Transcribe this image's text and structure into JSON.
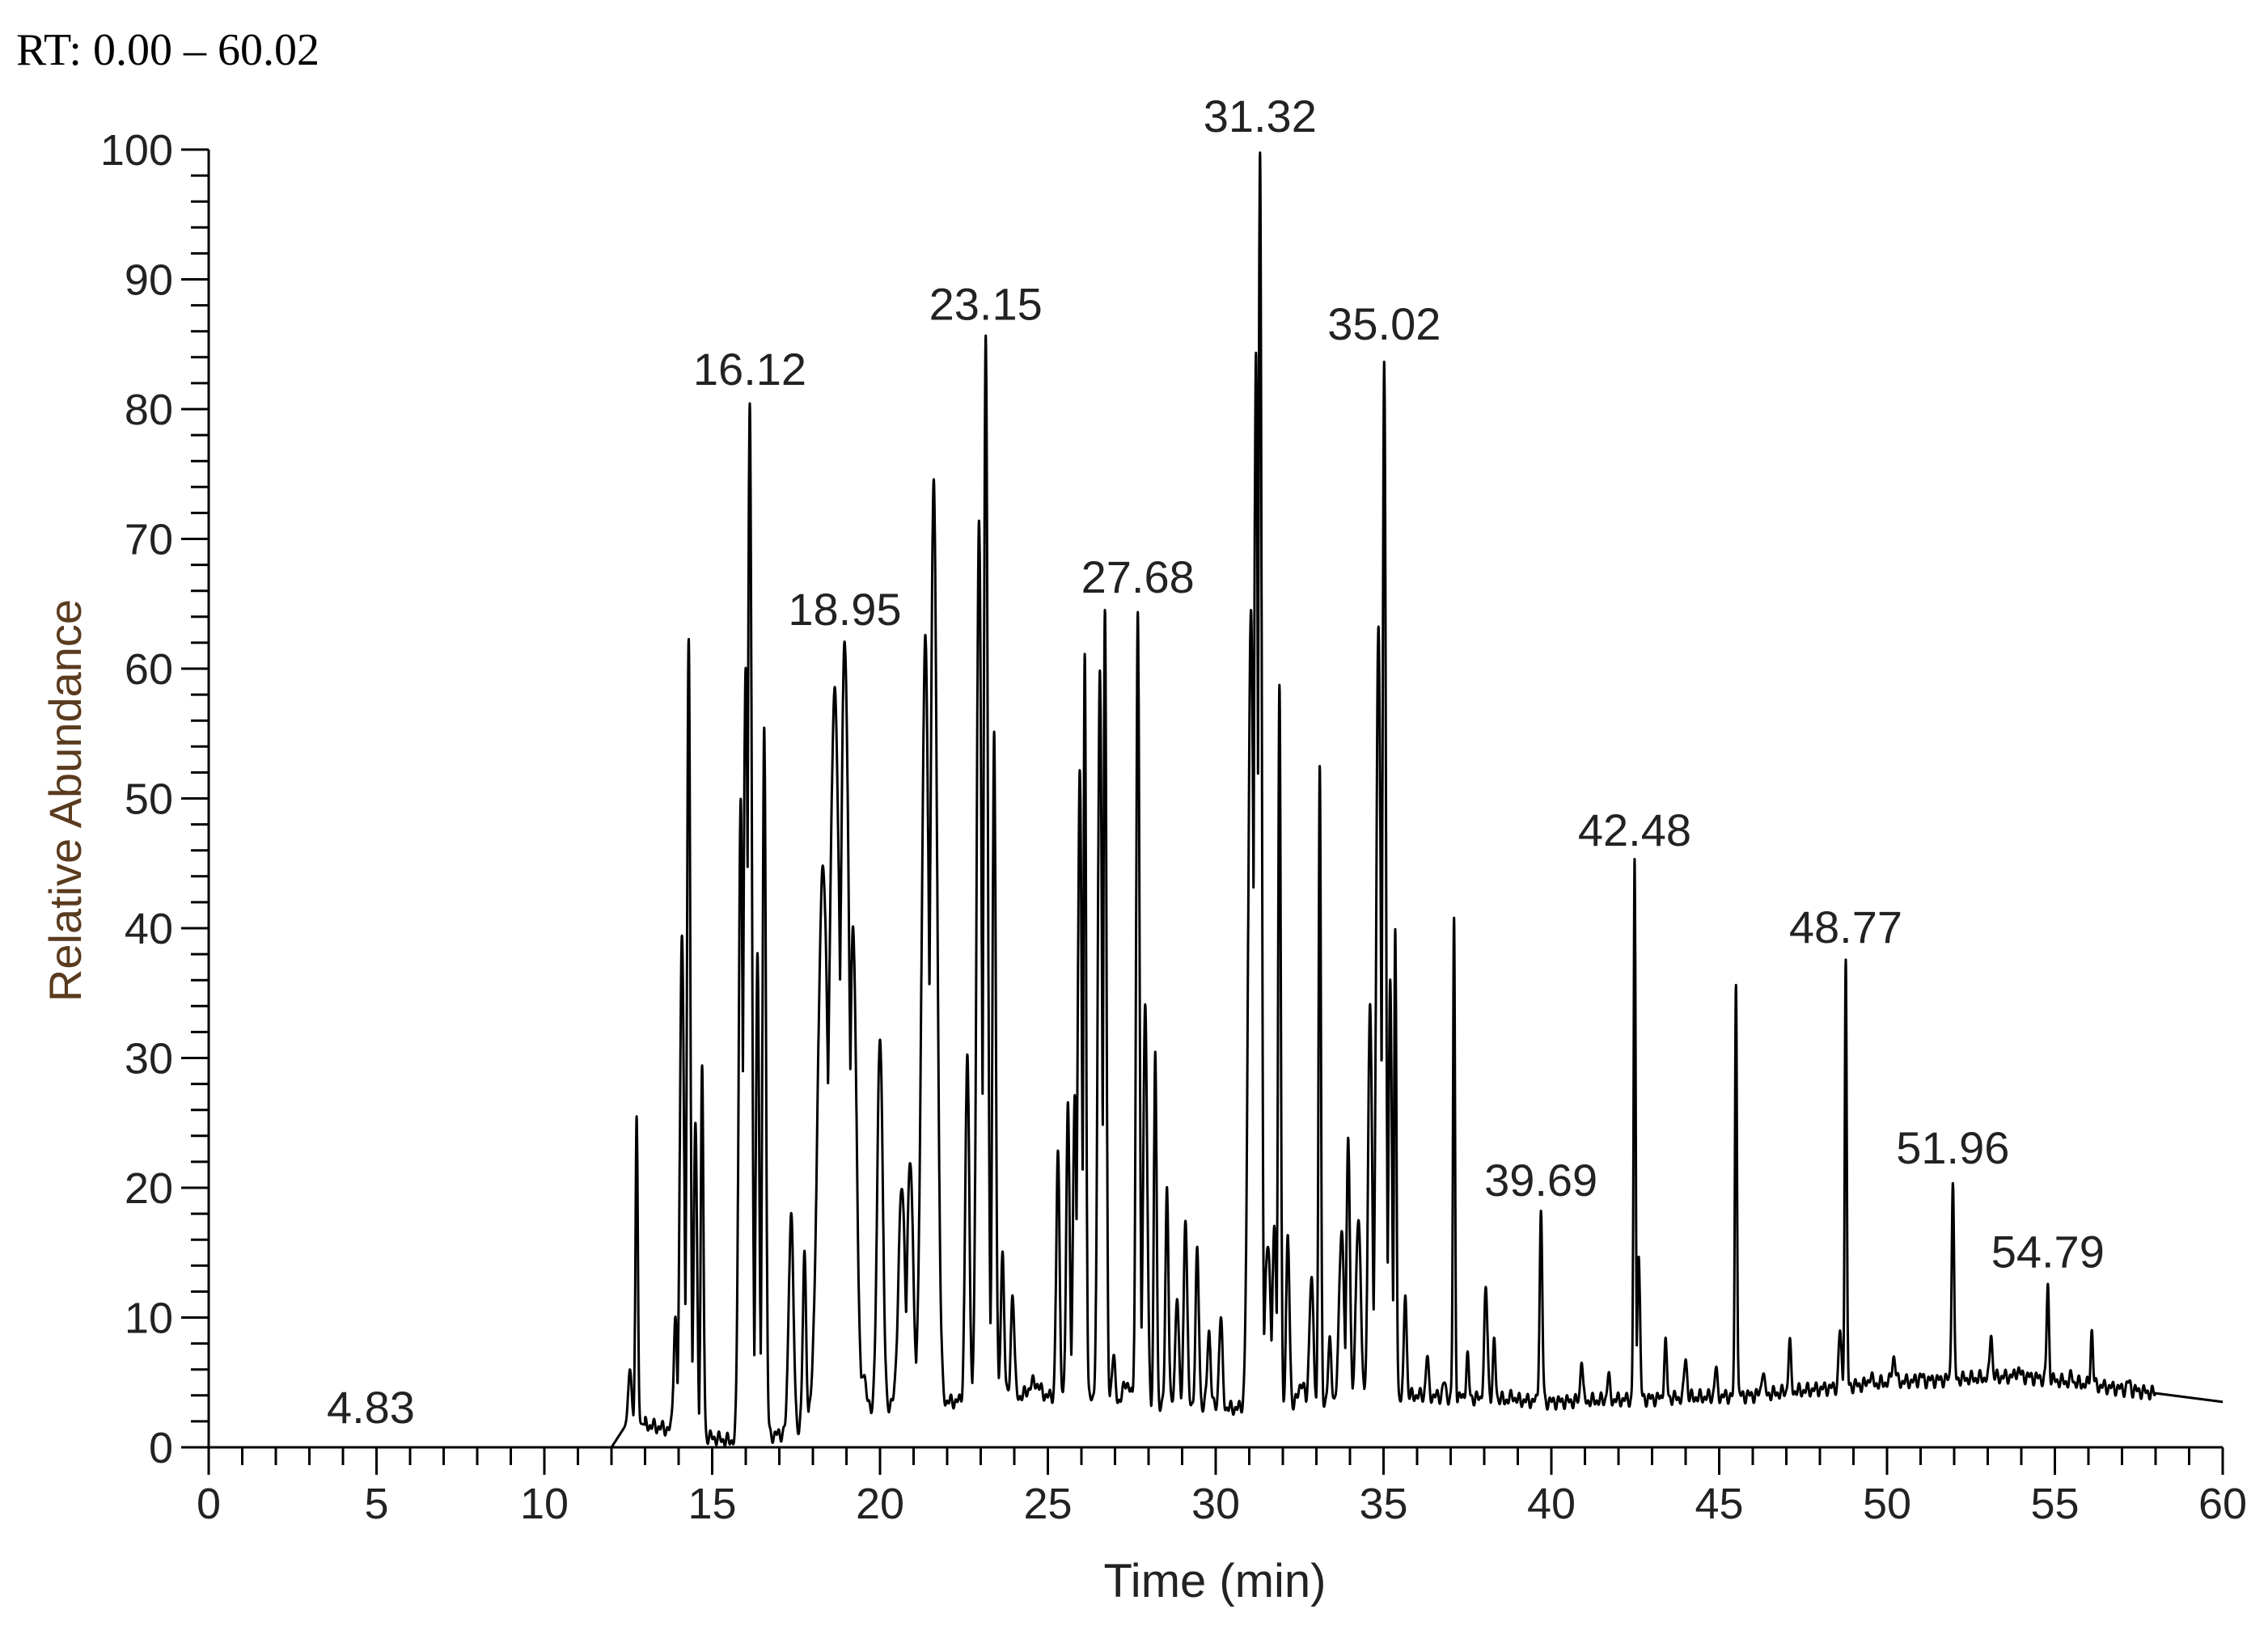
{
  "header": {
    "rt_range": "RT: 0.00 – 60.02"
  },
  "colors": {
    "axis": "#000000",
    "trace": "#000000",
    "ylabel": "#5a3b1e",
    "labels": "#222222"
  },
  "chart_data": {
    "type": "line",
    "title": "",
    "xlabel": "Time (min)",
    "ylabel": "Relative Abundance",
    "xlim": [
      0,
      60
    ],
    "ylim": [
      0,
      100
    ],
    "x_ticks": [
      0,
      5,
      10,
      15,
      20,
      25,
      30,
      35,
      40,
      45,
      50,
      55,
      60
    ],
    "y_ticks": [
      0,
      10,
      20,
      30,
      40,
      50,
      60,
      70,
      80,
      90,
      100
    ],
    "grid": false,
    "legend": "none",
    "peak_labels": [
      {
        "x": 4.83,
        "y": 0.5,
        "label": "4.83"
      },
      {
        "x": 16.12,
        "y": 80.5,
        "label": "16.12"
      },
      {
        "x": 18.95,
        "y": 62,
        "label": "18.95"
      },
      {
        "x": 23.15,
        "y": 85.5,
        "label": "23.15"
      },
      {
        "x": 27.68,
        "y": 64.5,
        "label": "27.68"
      },
      {
        "x": 31.32,
        "y": 100,
        "label": "31.32"
      },
      {
        "x": 35.02,
        "y": 84,
        "label": "35.02"
      },
      {
        "x": 39.69,
        "y": 18,
        "label": "39.69"
      },
      {
        "x": 42.48,
        "y": 45,
        "label": "42.48"
      },
      {
        "x": 48.77,
        "y": 37.5,
        "label": "48.77"
      },
      {
        "x": 51.96,
        "y": 20.5,
        "label": "51.96"
      },
      {
        "x": 54.79,
        "y": 12.5,
        "label": "54.79"
      }
    ],
    "peaks": [
      [
        12.55,
        6,
        0.05
      ],
      [
        12.75,
        25.5,
        0.035
      ],
      [
        13.9,
        10,
        0.05
      ],
      [
        14.1,
        40,
        0.06
      ],
      [
        14.3,
        62,
        0.05
      ],
      [
        14.5,
        25,
        0.05
      ],
      [
        14.7,
        29,
        0.04
      ],
      [
        15.85,
        50,
        0.06
      ],
      [
        16.0,
        60,
        0.07
      ],
      [
        16.12,
        80.5,
        0.06
      ],
      [
        16.35,
        38,
        0.05
      ],
      [
        16.55,
        56,
        0.05
      ],
      [
        17.35,
        18,
        0.07
      ],
      [
        17.75,
        15,
        0.05
      ],
      [
        18.3,
        45,
        0.15
      ],
      [
        18.65,
        58,
        0.16
      ],
      [
        18.95,
        62,
        0.13
      ],
      [
        19.2,
        40,
        0.1
      ],
      [
        19.5,
        6,
        0.07
      ],
      [
        20.0,
        32,
        0.08
      ],
      [
        20.65,
        20,
        0.1
      ],
      [
        20.9,
        22,
        0.09
      ],
      [
        21.35,
        62,
        0.11
      ],
      [
        21.6,
        74,
        0.1
      ],
      [
        22.6,
        30,
        0.06
      ],
      [
        22.95,
        72,
        0.07
      ],
      [
        23.15,
        85.5,
        0.06
      ],
      [
        23.4,
        55,
        0.05
      ],
      [
        23.65,
        15,
        0.05
      ],
      [
        23.95,
        12,
        0.05
      ],
      [
        24.6,
        5,
        0.15
      ],
      [
        25.3,
        22.5,
        0.05
      ],
      [
        25.6,
        26.5,
        0.05
      ],
      [
        25.8,
        27,
        0.05
      ],
      [
        25.95,
        52,
        0.06
      ],
      [
        26.1,
        61,
        0.04
      ],
      [
        26.55,
        60,
        0.06
      ],
      [
        26.7,
        64.5,
        0.045
      ],
      [
        26.95,
        7,
        0.05
      ],
      [
        27.35,
        5,
        0.1
      ],
      [
        27.68,
        64.5,
        0.05
      ],
      [
        27.9,
        34,
        0.06
      ],
      [
        28.2,
        30.5,
        0.04
      ],
      [
        28.55,
        20,
        0.045
      ],
      [
        28.85,
        12,
        0.05
      ],
      [
        29.1,
        18,
        0.05
      ],
      [
        29.45,
        15,
        0.05
      ],
      [
        29.8,
        9,
        0.05
      ],
      [
        30.15,
        10,
        0.05
      ],
      [
        31.05,
        65,
        0.08
      ],
      [
        31.2,
        84,
        0.06
      ],
      [
        31.32,
        100,
        0.05
      ],
      [
        31.55,
        16,
        0.08
      ],
      [
        31.75,
        17,
        0.06
      ],
      [
        31.9,
        58.5,
        0.04
      ],
      [
        32.15,
        16,
        0.05
      ],
      [
        32.55,
        5,
        0.08
      ],
      [
        32.85,
        13,
        0.06
      ],
      [
        33.1,
        52.5,
        0.035
      ],
      [
        33.4,
        8,
        0.05
      ],
      [
        33.75,
        17,
        0.07
      ],
      [
        33.95,
        24,
        0.05
      ],
      [
        34.25,
        18,
        0.07
      ],
      [
        34.6,
        34,
        0.06
      ],
      [
        34.85,
        63,
        0.07
      ],
      [
        35.02,
        84,
        0.05
      ],
      [
        35.2,
        36,
        0.05
      ],
      [
        35.35,
        39.5,
        0.035
      ],
      [
        35.65,
        12,
        0.04
      ],
      [
        36.3,
        7,
        0.04
      ],
      [
        36.8,
        5,
        0.04
      ],
      [
        37.1,
        40.5,
        0.03
      ],
      [
        37.5,
        7,
        0.04
      ],
      [
        38.05,
        12,
        0.05
      ],
      [
        38.3,
        8,
        0.04
      ],
      [
        38.85,
        4,
        0.05
      ],
      [
        39.69,
        18,
        0.04
      ],
      [
        40.9,
        7,
        0.035
      ],
      [
        41.7,
        5.5,
        0.04
      ],
      [
        42.48,
        45,
        0.03
      ],
      [
        42.6,
        15,
        0.04
      ],
      [
        43.4,
        8,
        0.04
      ],
      [
        44.0,
        7,
        0.04
      ],
      [
        44.9,
        6,
        0.04
      ],
      [
        45.5,
        36,
        0.03
      ],
      [
        46.3,
        6,
        0.04
      ],
      [
        47.1,
        8,
        0.04
      ],
      [
        48.6,
        9,
        0.04
      ],
      [
        48.77,
        37.5,
        0.03
      ],
      [
        49.5,
        5.5,
        0.05
      ],
      [
        50.2,
        7,
        0.05
      ],
      [
        51.0,
        5.5,
        0.05
      ],
      [
        51.96,
        20.5,
        0.035
      ],
      [
        53.1,
        9,
        0.035
      ],
      [
        53.9,
        6,
        0.05
      ],
      [
        54.79,
        12.5,
        0.035
      ],
      [
        55.5,
        5.5,
        0.04
      ],
      [
        56.1,
        9,
        0.035
      ],
      [
        57.2,
        5,
        0.05
      ]
    ],
    "baseline": [
      [
        0,
        0
      ],
      [
        12.0,
        0
      ],
      [
        12.5,
        2
      ],
      [
        13.5,
        1.5
      ],
      [
        15.5,
        0.5
      ],
      [
        17.0,
        1
      ],
      [
        19.5,
        3
      ],
      [
        24.5,
        4
      ],
      [
        30.5,
        3
      ],
      [
        36.0,
        4
      ],
      [
        40.0,
        3.5
      ],
      [
        46.0,
        4
      ],
      [
        50.0,
        5
      ],
      [
        54.0,
        5.5
      ],
      [
        57.0,
        4.5
      ],
      [
        60.0,
        3.5
      ]
    ]
  }
}
